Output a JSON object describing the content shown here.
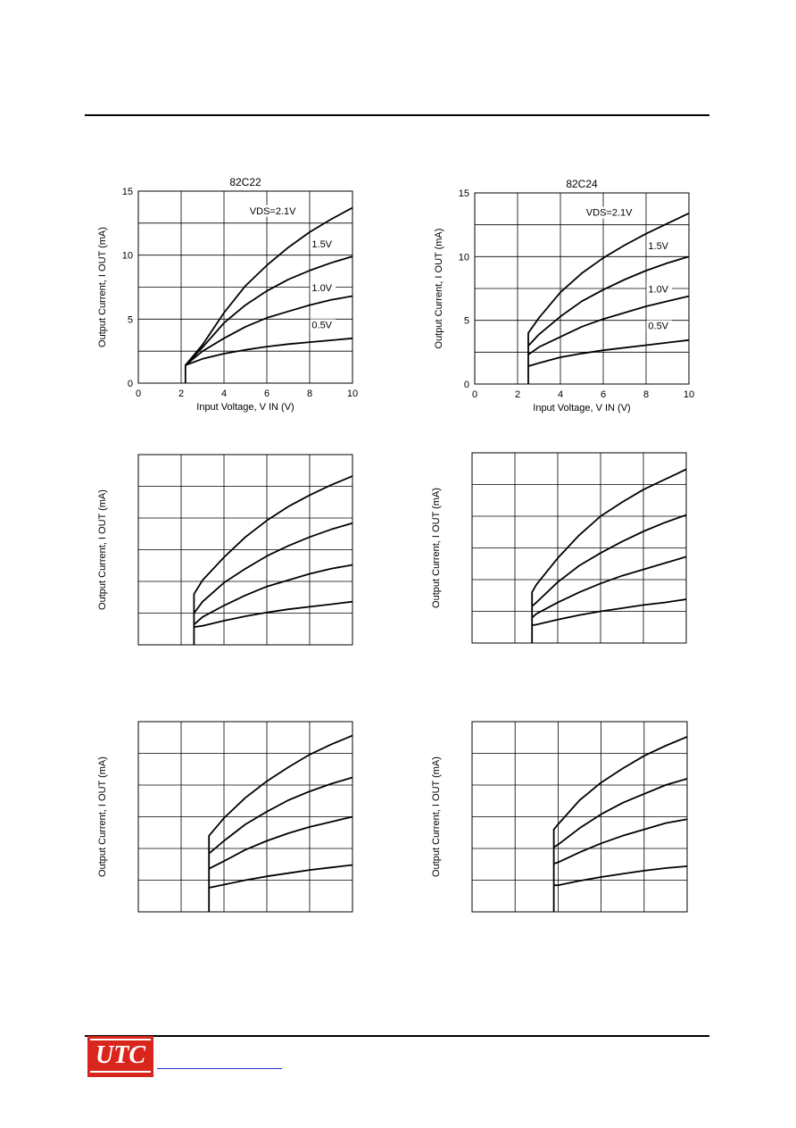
{
  "logo": {
    "text": "UTC"
  },
  "colors": {
    "logo": "#d9261c",
    "link": "#2233cc",
    "ink": "#000000"
  },
  "chart_data": [
    {
      "type": "line",
      "title": "82C22",
      "xlabel": "Input Voltage, V IN (V)",
      "ylabel": "Output Current, I OUT (mA)",
      "xlim": [
        0,
        10
      ],
      "ylim": [
        0,
        15
      ],
      "xticks": [
        "0",
        "2",
        "4",
        "6",
        "8",
        "10"
      ],
      "yticks": [
        "0",
        "5",
        "10",
        "15"
      ],
      "grid": true,
      "series": [
        {
          "name": "VDS=2.1V",
          "label_pos": [
            5.2,
            13.2
          ],
          "points": [
            [
              2.2,
              0
            ],
            [
              2.2,
              1.4
            ],
            [
              3,
              3
            ],
            [
              4,
              5.5
            ],
            [
              5,
              7.6
            ],
            [
              6,
              9.2
            ],
            [
              7,
              10.6
            ],
            [
              8,
              11.8
            ],
            [
              9,
              12.8
            ],
            [
              10,
              13.7
            ]
          ]
        },
        {
          "name": "1.5V",
          "label_pos": [
            8.1,
            10.6
          ],
          "points": [
            [
              2.2,
              1.4
            ],
            [
              3,
              2.8
            ],
            [
              4,
              4.7
            ],
            [
              5,
              6.1
            ],
            [
              6,
              7.2
            ],
            [
              7,
              8.1
            ],
            [
              8,
              8.8
            ],
            [
              9,
              9.4
            ],
            [
              10,
              9.9
            ]
          ]
        },
        {
          "name": "1.0V",
          "label_pos": [
            8.1,
            7.2
          ],
          "points": [
            [
              2.2,
              1.4
            ],
            [
              3,
              2.5
            ],
            [
              4,
              3.5
            ],
            [
              5,
              4.4
            ],
            [
              6,
              5.1
            ],
            [
              7,
              5.6
            ],
            [
              8,
              6.1
            ],
            [
              9,
              6.5
            ],
            [
              10,
              6.8
            ]
          ]
        },
        {
          "name": "0.5V",
          "label_pos": [
            8.1,
            4.3
          ],
          "points": [
            [
              2.2,
              1.4
            ],
            [
              3,
              1.9
            ],
            [
              4,
              2.3
            ],
            [
              5,
              2.6
            ],
            [
              6,
              2.85
            ],
            [
              7,
              3.05
            ],
            [
              8,
              3.2
            ],
            [
              9,
              3.35
            ],
            [
              10,
              3.5
            ]
          ]
        }
      ]
    },
    {
      "type": "line",
      "title": "82C24",
      "xlabel": "Input Voltage, V IN (V)",
      "ylabel": "Output Current, I OUT (mA)",
      "xlim": [
        0,
        10
      ],
      "ylim": [
        0,
        15
      ],
      "xticks": [
        "0",
        "2",
        "4",
        "6",
        "8",
        "10"
      ],
      "yticks": [
        "0",
        "5",
        "10",
        "15"
      ],
      "grid": true,
      "series": [
        {
          "name": "VDS=2.1V",
          "label_pos": [
            5.2,
            13.2
          ],
          "points": [
            [
              2.5,
              0
            ],
            [
              2.5,
              4
            ],
            [
              3,
              5.2
            ],
            [
              4,
              7.2
            ],
            [
              5,
              8.7
            ],
            [
              6,
              9.9
            ],
            [
              7,
              10.9
            ],
            [
              8,
              11.8
            ],
            [
              9,
              12.6
            ],
            [
              10,
              13.4
            ]
          ]
        },
        {
          "name": "1.5V",
          "label_pos": [
            8.1,
            10.6
          ],
          "points": [
            [
              2.5,
              3
            ],
            [
              3,
              3.9
            ],
            [
              4,
              5.3
            ],
            [
              5,
              6.5
            ],
            [
              6,
              7.4
            ],
            [
              7,
              8.2
            ],
            [
              8,
              8.9
            ],
            [
              9,
              9.5
            ],
            [
              10,
              10
            ]
          ]
        },
        {
          "name": "1.0V",
          "label_pos": [
            8.1,
            7.2
          ],
          "points": [
            [
              2.5,
              2.3
            ],
            [
              3,
              2.9
            ],
            [
              4,
              3.7
            ],
            [
              5,
              4.5
            ],
            [
              6,
              5.1
            ],
            [
              7,
              5.6
            ],
            [
              8,
              6.1
            ],
            [
              9,
              6.5
            ],
            [
              10,
              6.9
            ]
          ]
        },
        {
          "name": "0.5V",
          "label_pos": [
            8.1,
            4.3
          ],
          "points": [
            [
              2.5,
              1.4
            ],
            [
              3,
              1.65
            ],
            [
              4,
              2.1
            ],
            [
              5,
              2.4
            ],
            [
              6,
              2.65
            ],
            [
              7,
              2.85
            ],
            [
              8,
              3.05
            ],
            [
              9,
              3.25
            ],
            [
              10,
              3.45
            ]
          ]
        }
      ]
    },
    {
      "type": "line",
      "ylabel": "Output Current, I OUT (mA)",
      "xlim": [
        0,
        10
      ],
      "ylim": [
        0,
        15
      ],
      "grid": true,
      "series": [
        {
          "points": [
            [
              2.6,
              0
            ],
            [
              2.6,
              4
            ],
            [
              3,
              5.1
            ],
            [
              4,
              6.9
            ],
            [
              5,
              8.5
            ],
            [
              6,
              9.8
            ],
            [
              7,
              10.9
            ],
            [
              8,
              11.8
            ],
            [
              9,
              12.6
            ],
            [
              10,
              13.3
            ]
          ]
        },
        {
          "points": [
            [
              2.6,
              2.5
            ],
            [
              3,
              3.4
            ],
            [
              4,
              4.9
            ],
            [
              5,
              6
            ],
            [
              6,
              7
            ],
            [
              7,
              7.8
            ],
            [
              8,
              8.5
            ],
            [
              9,
              9.1
            ],
            [
              10,
              9.6
            ]
          ]
        },
        {
          "points": [
            [
              2.6,
              1.6
            ],
            [
              3,
              2.2
            ],
            [
              4,
              3.1
            ],
            [
              5,
              3.9
            ],
            [
              6,
              4.6
            ],
            [
              7,
              5.1
            ],
            [
              8,
              5.6
            ],
            [
              9,
              6
            ],
            [
              10,
              6.3
            ]
          ]
        },
        {
          "points": [
            [
              2.6,
              1.4
            ],
            [
              3,
              1.5
            ],
            [
              4,
              1.9
            ],
            [
              5,
              2.25
            ],
            [
              6,
              2.55
            ],
            [
              7,
              2.8
            ],
            [
              8,
              3
            ],
            [
              9,
              3.2
            ],
            [
              10,
              3.4
            ]
          ]
        }
      ]
    },
    {
      "type": "line",
      "ylabel": "Output Current, I OUT (mA)",
      "xlim": [
        0,
        10
      ],
      "ylim": [
        0,
        15
      ],
      "grid": true,
      "series": [
        {
          "points": [
            [
              2.8,
              0
            ],
            [
              2.8,
              4
            ],
            [
              3,
              4.6
            ],
            [
              4,
              6.7
            ],
            [
              5,
              8.5
            ],
            [
              6,
              10
            ],
            [
              7,
              11.1
            ],
            [
              8,
              12.1
            ],
            [
              9,
              12.9
            ],
            [
              10,
              13.7
            ]
          ]
        },
        {
          "points": [
            [
              2.8,
              2.9
            ],
            [
              3,
              3.2
            ],
            [
              4,
              4.8
            ],
            [
              5,
              6.1
            ],
            [
              6,
              7.1
            ],
            [
              7,
              8
            ],
            [
              8,
              8.8
            ],
            [
              9,
              9.5
            ],
            [
              10,
              10.1
            ]
          ]
        },
        {
          "points": [
            [
              2.8,
              2
            ],
            [
              3,
              2.3
            ],
            [
              4,
              3.2
            ],
            [
              5,
              4
            ],
            [
              6,
              4.7
            ],
            [
              7,
              5.3
            ],
            [
              8,
              5.8
            ],
            [
              9,
              6.3
            ],
            [
              10,
              6.8
            ]
          ]
        },
        {
          "points": [
            [
              2.8,
              1.4
            ],
            [
              3,
              1.45
            ],
            [
              4,
              1.85
            ],
            [
              5,
              2.2
            ],
            [
              6,
              2.5
            ],
            [
              7,
              2.75
            ],
            [
              8,
              3
            ],
            [
              9,
              3.2
            ],
            [
              10,
              3.45
            ]
          ]
        }
      ]
    },
    {
      "type": "line",
      "ylabel": "Output Current, I OUT (mA)",
      "xlim": [
        0,
        10
      ],
      "ylim": [
        0,
        15
      ],
      "grid": true,
      "series": [
        {
          "points": [
            [
              3.3,
              0
            ],
            [
              3.3,
              6
            ],
            [
              4,
              7.4
            ],
            [
              5,
              9
            ],
            [
              6,
              10.3
            ],
            [
              7,
              11.4
            ],
            [
              8,
              12.4
            ],
            [
              9,
              13.2
            ],
            [
              10,
              13.9
            ]
          ]
        },
        {
          "points": [
            [
              3.3,
              4.6
            ],
            [
              4,
              5.6
            ],
            [
              5,
              6.9
            ],
            [
              6,
              7.9
            ],
            [
              7,
              8.8
            ],
            [
              8,
              9.5
            ],
            [
              9,
              10.1
            ],
            [
              10,
              10.6
            ]
          ]
        },
        {
          "points": [
            [
              3.3,
              3.4
            ],
            [
              4,
              4
            ],
            [
              5,
              4.9
            ],
            [
              6,
              5.6
            ],
            [
              7,
              6.2
            ],
            [
              8,
              6.7
            ],
            [
              9,
              7.1
            ],
            [
              10,
              7.5
            ]
          ]
        },
        {
          "points": [
            [
              3.3,
              1.9
            ],
            [
              4,
              2.15
            ],
            [
              5,
              2.5
            ],
            [
              6,
              2.8
            ],
            [
              7,
              3.05
            ],
            [
              8,
              3.3
            ],
            [
              9,
              3.5
            ],
            [
              10,
              3.7
            ]
          ]
        }
      ]
    },
    {
      "type": "line",
      "ylabel": "Output Current, I OUT (mA)",
      "xlim": [
        0,
        10
      ],
      "ylim": [
        0,
        15
      ],
      "grid": true,
      "series": [
        {
          "points": [
            [
              3.8,
              0
            ],
            [
              3.8,
              6.5
            ],
            [
              4,
              6.9
            ],
            [
              5,
              8.8
            ],
            [
              6,
              10.2
            ],
            [
              7,
              11.3
            ],
            [
              8,
              12.3
            ],
            [
              9,
              13.1
            ],
            [
              10,
              13.8
            ]
          ]
        },
        {
          "points": [
            [
              3.8,
              5.1
            ],
            [
              4,
              5.3
            ],
            [
              5,
              6.6
            ],
            [
              6,
              7.7
            ],
            [
              7,
              8.6
            ],
            [
              8,
              9.3
            ],
            [
              9,
              10
            ],
            [
              10,
              10.5
            ]
          ]
        },
        {
          "points": [
            [
              3.8,
              3.8
            ],
            [
              4,
              3.9
            ],
            [
              5,
              4.7
            ],
            [
              6,
              5.4
            ],
            [
              7,
              6
            ],
            [
              8,
              6.5
            ],
            [
              9,
              7
            ],
            [
              10,
              7.3
            ]
          ]
        },
        {
          "points": [
            [
              3.8,
              2.1
            ],
            [
              4,
              2.1
            ],
            [
              5,
              2.45
            ],
            [
              6,
              2.75
            ],
            [
              7,
              3
            ],
            [
              8,
              3.25
            ],
            [
              9,
              3.45
            ],
            [
              10,
              3.6
            ]
          ]
        }
      ]
    }
  ]
}
